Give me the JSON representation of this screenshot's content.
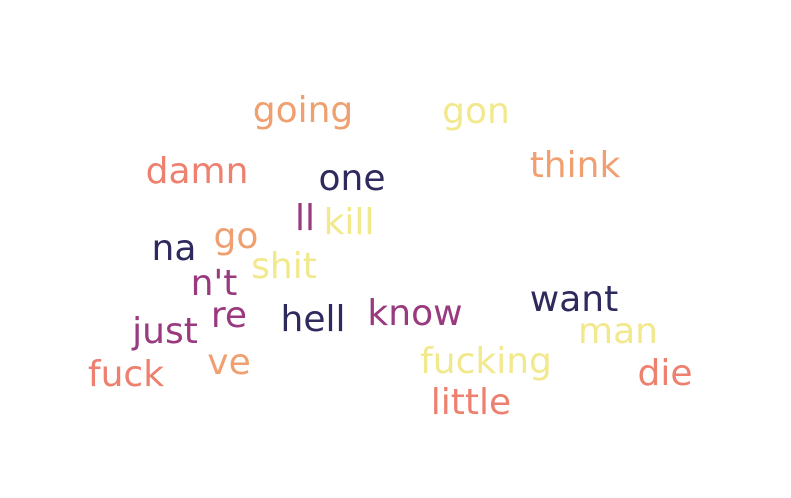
{
  "words": [
    {
      "text": "going",
      "color": "#f0a070"
    },
    {
      "text": "gon",
      "color": "#f2e88c"
    },
    {
      "text": "damn",
      "color": "#ee8070"
    },
    {
      "text": "one",
      "color": "#2e2a5e"
    },
    {
      "text": "think",
      "color": "#f0a070"
    },
    {
      "text": "ll",
      "color": "#9a3a7e"
    },
    {
      "text": "kill",
      "color": "#f2e88c"
    },
    {
      "text": "na",
      "color": "#2e2a5e"
    },
    {
      "text": "go",
      "color": "#f0a070"
    },
    {
      "text": "shit",
      "color": "#f2e88c"
    },
    {
      "text": "n't",
      "color": "#9a3a7e"
    },
    {
      "text": "want",
      "color": "#2e2a5e"
    },
    {
      "text": "re",
      "color": "#9a3a7e"
    },
    {
      "text": "hell",
      "color": "#2e2a5e"
    },
    {
      "text": "know",
      "color": "#9a3a7e"
    },
    {
      "text": "man",
      "color": "#f2e88c"
    },
    {
      "text": "just",
      "color": "#9a3a7e"
    },
    {
      "text": "ve",
      "color": "#f0a070"
    },
    {
      "text": "fucking",
      "color": "#f2e88c"
    },
    {
      "text": "fuck",
      "color": "#ee8070"
    },
    {
      "text": "die",
      "color": "#ee8070"
    },
    {
      "text": "little",
      "color": "#ee8070"
    }
  ]
}
